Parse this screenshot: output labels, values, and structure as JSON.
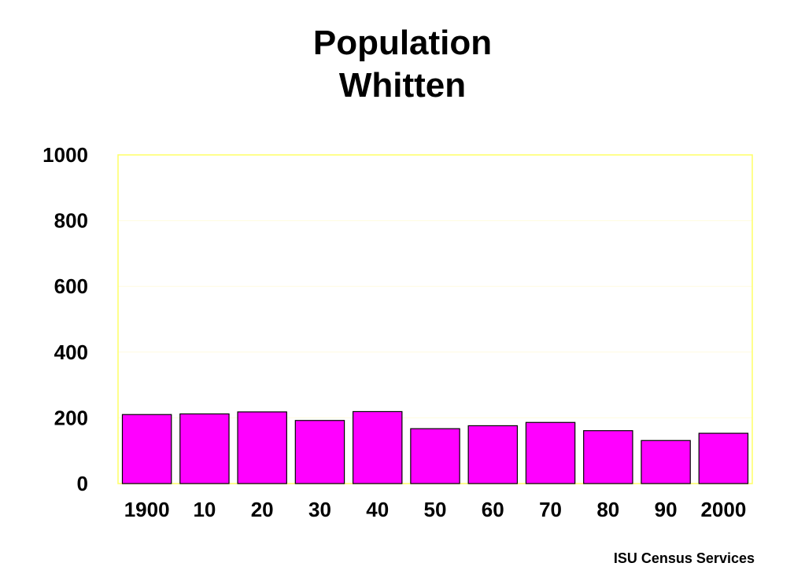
{
  "chart_data": {
    "type": "bar",
    "title": "Population",
    "subtitle": "Whitten",
    "categories": [
      "1900",
      "10",
      "20",
      "30",
      "40",
      "50",
      "60",
      "70",
      "80",
      "90",
      "2000"
    ],
    "values": [
      210,
      212,
      218,
      192,
      219,
      167,
      176,
      186,
      161,
      131,
      153
    ],
    "ylim": [
      0,
      1000
    ],
    "yticks": [
      "0",
      "200",
      "400",
      "600",
      "800",
      "1000"
    ],
    "bar_color": "#ff00ff",
    "plot_border_color": "#ffff66",
    "grid": true
  },
  "footer": {
    "credit": "ISU Census Services"
  }
}
